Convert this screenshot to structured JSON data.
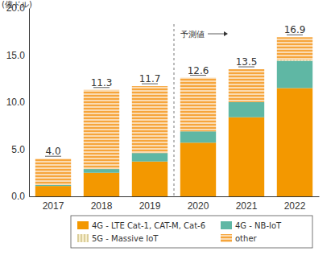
{
  "chart_data": {
    "type": "bar",
    "stacked": true,
    "y_label": "(億ドル)",
    "categories": [
      "2017",
      "2018",
      "2019",
      "2020",
      "2021",
      "2022"
    ],
    "series": [
      {
        "name": "4G - LTE Cat-1, CAT-M, Cat-6",
        "color": "#f39800",
        "values": [
          1.1,
          2.5,
          3.7,
          5.7,
          8.4,
          11.5
        ]
      },
      {
        "name": "4G - NB-IoT",
        "color": "#5fb7a4",
        "values": [
          0.1,
          0.4,
          0.9,
          1.2,
          1.6,
          2.9
        ]
      },
      {
        "name": "5G - Massive IoT",
        "color": "#c9b878",
        "values": [
          0,
          0,
          0,
          0,
          0,
          0.1
        ]
      },
      {
        "name": "other",
        "color": "#f6a53c",
        "values": [
          2.8,
          8.4,
          7.1,
          5.7,
          3.5,
          2.4
        ]
      }
    ],
    "totals": [
      4.0,
      11.3,
      11.7,
      12.6,
      13.5,
      16.9
    ],
    "total_labels": [
      "4.0",
      "11.3",
      "11.7",
      "12.6",
      "13.5",
      "16.9"
    ],
    "annotations": [
      {
        "text": "予測値",
        "x": "2020"
      }
    ],
    "ylim": [
      0,
      20
    ],
    "yticks": [
      {
        "value": 0,
        "label": "0.0"
      },
      {
        "value": 5,
        "label": "5.0"
      },
      {
        "value": 10,
        "label": "10.0"
      },
      {
        "value": 15,
        "label": "15.0"
      },
      {
        "value": 20,
        "label": "20.0"
      }
    ],
    "grid": false,
    "legend": "bottom"
  }
}
